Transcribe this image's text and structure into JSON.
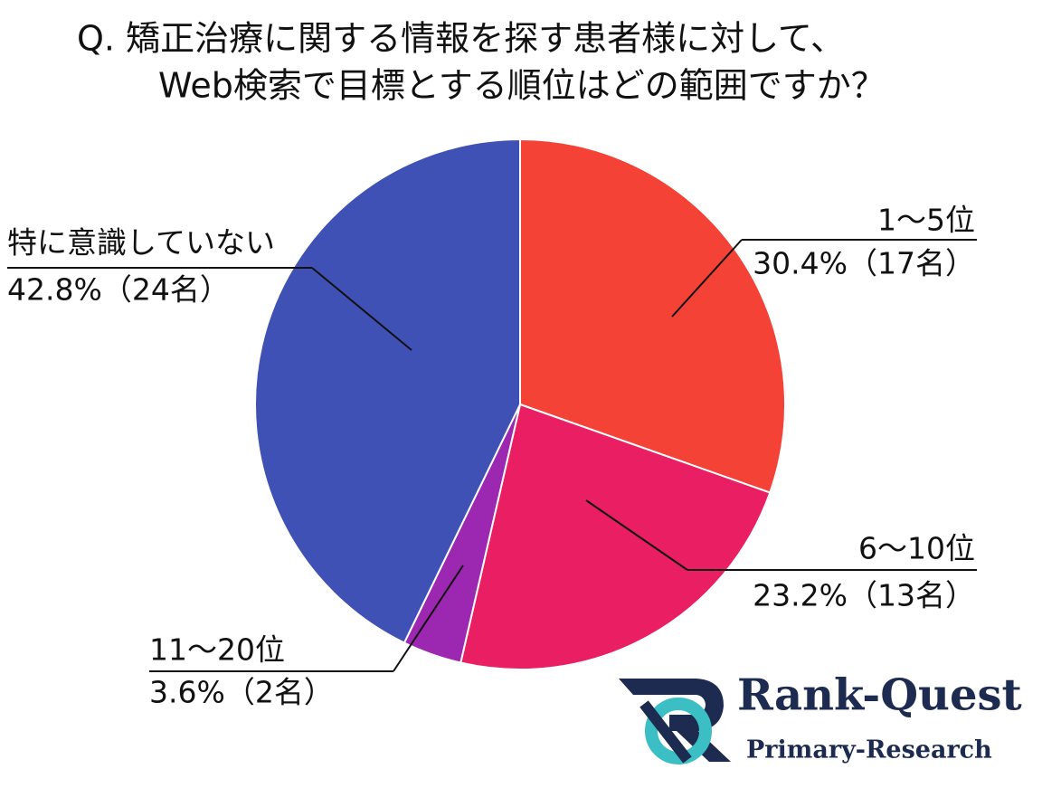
{
  "chart_data": {
    "type": "pie",
    "title": [
      "Q.  矯正治療に関する情報を探す患者様に対して、",
      "Web検索で目標とする順位はどの範囲ですか？"
    ],
    "categories": [
      "1～5位",
      "6～10位",
      "11～20位",
      "特に意識していない"
    ],
    "values": [
      30.4,
      23.2,
      3.6,
      42.8
    ],
    "value_labels": [
      "30.4%（17名）",
      "23.2%（13名）",
      "3.6%（2名）",
      "42.8%（24名）"
    ],
    "colors": [
      "#f44336",
      "#e91e63",
      "#9c27b0",
      "#3f51b5"
    ]
  },
  "logo": {
    "name": "Rank-Quest",
    "tagline": "Primary-Research"
  }
}
